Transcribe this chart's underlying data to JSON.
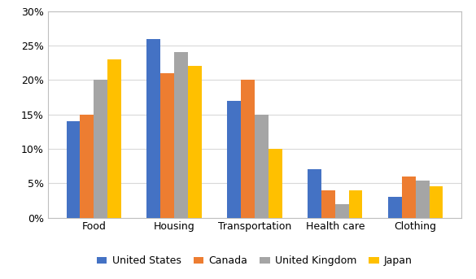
{
  "categories": [
    "Food",
    "Housing",
    "Transportation",
    "Health care",
    "Clothing"
  ],
  "series": [
    {
      "name": "United States",
      "values": [
        0.14,
        0.26,
        0.17,
        0.07,
        0.03
      ],
      "color": "#4472C4"
    },
    {
      "name": "Canada",
      "values": [
        0.15,
        0.21,
        0.2,
        0.04,
        0.06
      ],
      "color": "#ED7D31"
    },
    {
      "name": "United Kingdom",
      "values": [
        0.2,
        0.24,
        0.15,
        0.02,
        0.054
      ],
      "color": "#A5A5A5"
    },
    {
      "name": "Japan",
      "values": [
        0.23,
        0.22,
        0.1,
        0.04,
        0.046
      ],
      "color": "#FFC000"
    }
  ],
  "ylim": [
    0,
    0.3
  ],
  "yticks": [
    0.0,
    0.05,
    0.1,
    0.15,
    0.2,
    0.25,
    0.3
  ],
  "yticklabels": [
    "0%",
    "5%",
    "10%",
    "15%",
    "20%",
    "25%",
    "30%"
  ],
  "bar_width": 0.17,
  "figsize": [
    5.85,
    3.43
  ],
  "dpi": 100,
  "spine_color": "#BFBFBF",
  "grid_color": "#D9D9D9",
  "tick_label_fontsize": 9,
  "legend_fontsize": 9
}
